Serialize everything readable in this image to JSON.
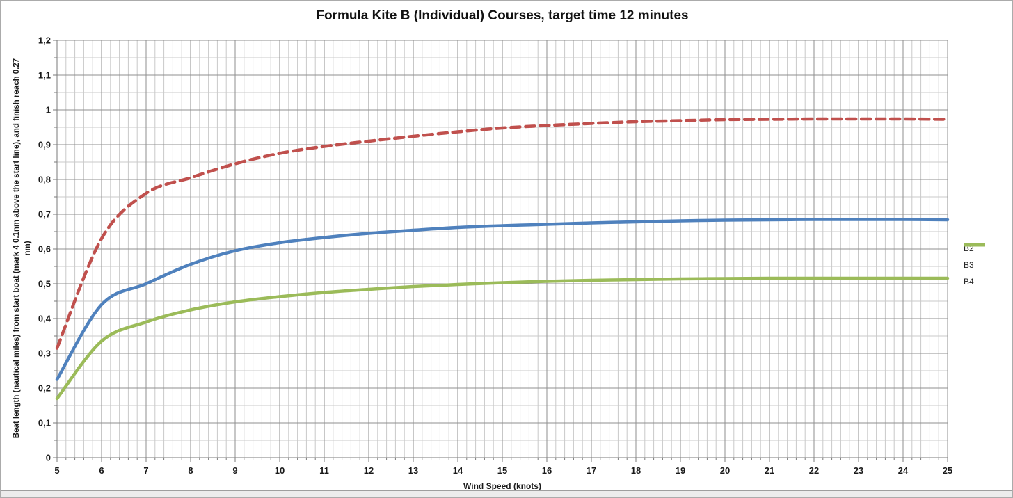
{
  "title": "Formula Kite B (Individual) Courses, target time 12 minutes",
  "x_axis": {
    "label": "Wind Speed (knots)",
    "min": 5,
    "max": 25,
    "major_step": 1,
    "minor_step": 0.2,
    "tick_labels": [
      "5",
      "6",
      "7",
      "8",
      "9",
      "10",
      "11",
      "12",
      "13",
      "14",
      "15",
      "16",
      "17",
      "18",
      "19",
      "20",
      "21",
      "22",
      "23",
      "24",
      "25"
    ]
  },
  "y_axis": {
    "label_lines": [
      "Beat length (nautical miles) from start boat (mark 4 0.1nm above the start line), and finish reach 0.27",
      "nm)"
    ],
    "min": 0,
    "max": 1.2,
    "major_step": 0.1,
    "minor_step": 0.05,
    "tick_labels": [
      "0",
      "0,1",
      "0,2",
      "0,3",
      "0,4",
      "0,5",
      "0,6",
      "0,7",
      "0,8",
      "0,9",
      "1",
      "1,1",
      "1,2"
    ]
  },
  "colors": {
    "minor_grid": "#c9c9c9",
    "major_grid": "#8f8f8f",
    "axis": "#7a7a7a",
    "text": "#1a1a1a"
  },
  "chart_data": {
    "type": "line",
    "title": "Formula Kite B (Individual) Courses, target time 12 minutes",
    "xlabel": "Wind Speed (knots)",
    "ylabel": "Beat length (nautical miles) from start boat (mark 4 0.1nm above the start line), and finish reach 0.27 nm)",
    "x": [
      5,
      6,
      7,
      8,
      9,
      10,
      11,
      12,
      13,
      14,
      15,
      16,
      17,
      18,
      19,
      20,
      21,
      22,
      23,
      24,
      25
    ],
    "xlim": [
      5,
      25
    ],
    "ylim": [
      0,
      1.2
    ],
    "grid": "major+minor",
    "legend_position": "right-outside",
    "series": [
      {
        "name": "B2",
        "color": "#C0504D",
        "style": "dashed",
        "values": [
          0.315,
          0.63,
          0.76,
          0.805,
          0.845,
          0.875,
          0.895,
          0.91,
          0.924,
          0.937,
          0.948,
          0.955,
          0.961,
          0.966,
          0.969,
          0.972,
          0.973,
          0.974,
          0.974,
          0.974,
          0.973
        ]
      },
      {
        "name": "B3",
        "color": "#4F81BD",
        "style": "solid",
        "values": [
          0.225,
          0.44,
          0.5,
          0.556,
          0.595,
          0.618,
          0.633,
          0.645,
          0.654,
          0.662,
          0.667,
          0.671,
          0.675,
          0.678,
          0.681,
          0.683,
          0.684,
          0.685,
          0.685,
          0.685,
          0.684
        ]
      },
      {
        "name": "B4",
        "color": "#9BBB59",
        "style": "solid",
        "values": [
          0.17,
          0.335,
          0.39,
          0.425,
          0.448,
          0.463,
          0.475,
          0.484,
          0.492,
          0.498,
          0.503,
          0.507,
          0.51,
          0.512,
          0.514,
          0.515,
          0.516,
          0.516,
          0.516,
          0.516,
          0.516
        ]
      }
    ]
  }
}
